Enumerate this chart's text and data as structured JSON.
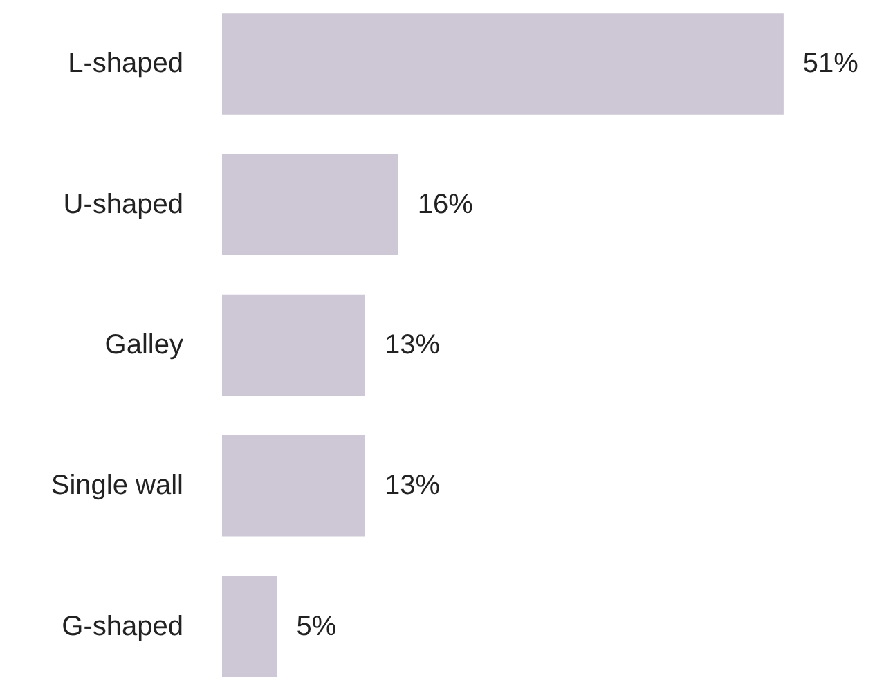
{
  "chart_data": {
    "type": "bar",
    "orientation": "horizontal",
    "categories": [
      "L-shaped",
      "U-shaped",
      "Galley",
      "Single wall",
      "G-shaped"
    ],
    "values": [
      51,
      16,
      13,
      13,
      5
    ],
    "value_labels": [
      "51%",
      "16%",
      "13%",
      "13%",
      "5%"
    ],
    "color": "#cdc7d6",
    "grid": false
  }
}
